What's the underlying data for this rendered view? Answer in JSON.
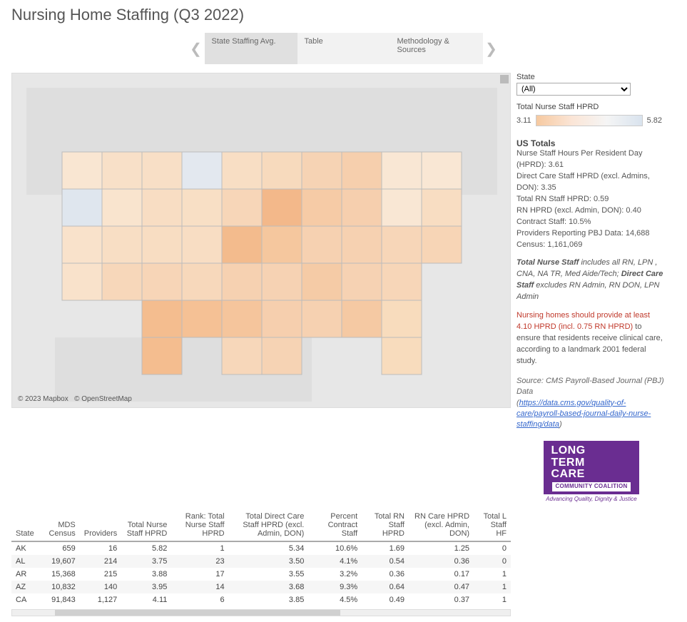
{
  "page": {
    "title": "Nursing Home Staffing (Q3 2022)"
  },
  "tabs": {
    "items": [
      {
        "label": "State Staffing Avg."
      },
      {
        "label": "Table"
      },
      {
        "label": "Methodology & Sources"
      }
    ]
  },
  "filter": {
    "label": "State",
    "selected": "(All)"
  },
  "legend": {
    "title": "Total Nurse Staff HPRD",
    "min": "3.11",
    "max": "5.82",
    "gradient_colors": [
      "#f6c9a0",
      "#fbe5d6",
      "#f5f5f5",
      "#d9e3ee"
    ]
  },
  "map": {
    "background_color": "#e7e7e7",
    "land_color": "#ececec",
    "us_fill_default": "#f8d9bc",
    "stroke_color": "#bcbcbc",
    "attribution_left": "© 2023 Mapbox",
    "attribution_right": "© OpenStreetMap",
    "states": [
      {
        "id": "OR",
        "fill": "#dfe6ee"
      },
      {
        "id": "ND",
        "fill": "#e3e8ef"
      },
      {
        "id": "AK_note",
        "fill": "#e8edf3"
      },
      {
        "id": "IL",
        "fill": "#f3b88a"
      },
      {
        "id": "TX",
        "fill": "#f4bd8f"
      },
      {
        "id": "MO",
        "fill": "#f3bb8d"
      },
      {
        "id": "OK",
        "fill": "#f5c195"
      },
      {
        "id": "LA",
        "fill": "#f5c59c"
      },
      {
        "id": "GA",
        "fill": "#f5c9a3"
      },
      {
        "id": "VA",
        "fill": "#f5cba6"
      },
      {
        "id": "IN",
        "fill": "#f5c79e"
      },
      {
        "id": "NY",
        "fill": "#f6cfad"
      },
      {
        "id": "NM",
        "fill": "#f7d5b7"
      },
      {
        "id": "PA",
        "fill": "#f6cfae"
      },
      {
        "id": "TN",
        "fill": "#f6cfae"
      },
      {
        "id": "NC",
        "fill": "#f6d2b3"
      },
      {
        "id": "SC",
        "fill": "#f6d1b1"
      },
      {
        "id": "AL",
        "fill": "#f6d3b4"
      },
      {
        "id": "MS",
        "fill": "#f7d7ba"
      },
      {
        "id": "AR_s",
        "fill": "#f6d1b1"
      },
      {
        "id": "KY",
        "fill": "#f6d2b3"
      },
      {
        "id": "OH",
        "fill": "#f6cba6"
      },
      {
        "id": "WV",
        "fill": "#f6d1b1"
      },
      {
        "id": "MI",
        "fill": "#f6d3b4"
      },
      {
        "id": "WI",
        "fill": "#f7dabd"
      },
      {
        "id": "MN",
        "fill": "#f8dec4"
      },
      {
        "id": "IA",
        "fill": "#f7d6b8"
      },
      {
        "id": "NE",
        "fill": "#f8ddc3"
      },
      {
        "id": "KS",
        "fill": "#f7d8bb"
      },
      {
        "id": "SD",
        "fill": "#f8dfc5"
      },
      {
        "id": "MT",
        "fill": "#f8dfc6"
      },
      {
        "id": "WY",
        "fill": "#f8ddc3"
      },
      {
        "id": "CO",
        "fill": "#f8ddc2"
      },
      {
        "id": "UT",
        "fill": "#f8dec4"
      },
      {
        "id": "ID",
        "fill": "#f8e0c8"
      },
      {
        "id": "NV",
        "fill": "#f9e4ce"
      },
      {
        "id": "AZ_s",
        "fill": "#f7d7ba"
      },
      {
        "id": "CA_s",
        "fill": "#f9e2cb"
      },
      {
        "id": "WA",
        "fill": "#f9e6d2"
      },
      {
        "id": "FL",
        "fill": "#f8dcbd"
      },
      {
        "id": "ME",
        "fill": "#f9e7d4"
      },
      {
        "id": "NH",
        "fill": "#f9e7d4"
      },
      {
        "id": "VT",
        "fill": "#f9e7d4"
      },
      {
        "id": "MA",
        "fill": "#f8ddc2"
      },
      {
        "id": "CT",
        "fill": "#f7d6b8"
      },
      {
        "id": "NJ",
        "fill": "#f6d1b1"
      },
      {
        "id": "MD",
        "fill": "#f7d5b6"
      },
      {
        "id": "DE",
        "fill": "#f7d6b8"
      }
    ]
  },
  "us_totals": {
    "heading": "US Totals",
    "lines": [
      "Nurse Staff Hours Per Resident Day (HPRD): 3.61",
      "Direct Care Staff HPRD (excl. Admins, DON): 3.35",
      "Total RN Staff HPRD: 0.59",
      "RN HPRD (excl. Admin, DON): 0.40",
      "Contract Staff: 10.5%",
      "Providers Reporting PBJ Data: 14,688",
      "Census: 1,161,069"
    ],
    "note_total_label": "Total Nurse Staff",
    "note_total_rest": " includes all RN, LPN , CNA, NA TR, Med Aide/Tech; ",
    "note_direct_label": "Direct Care Staff",
    "note_direct_rest": " excludes RN Admin, RN DON, LPN Admin",
    "red_text": "Nursing homes should provide at least 4.10 HPRD (incl. 0.75 RN HPRD)",
    "red_rest": " to ensure that residents receive clinical care, according to a landmark 2001 federal study."
  },
  "source": {
    "prefix": "Source: CMS Payroll-Based Journal (PBJ) Data",
    "link_open": "(",
    "url_text": "https://data.cms.gov/quality-of-care/payroll-based-journal-daily-nurse-staffing/data",
    "link_close": ")"
  },
  "logo": {
    "line1": "LONG",
    "line2": "TERM",
    "line3": "CARE",
    "sub": "COMMUNITY COALITION",
    "tag": "Advancing Quality, Dignity & Justice"
  },
  "table": {
    "columns": [
      "State",
      "MDS Census",
      "Providers",
      "Total Nurse Staff HPRD",
      "Rank: Total Nurse Staff HPRD",
      "Total Direct Care Staff HPRD (excl. Admin, DON)",
      "Percent Contract Staff",
      "Total RN Staff HPRD",
      "RN Care HPRD (excl. Admin, DON)",
      "Total L Staff HF"
    ],
    "col_align": [
      "left",
      "right",
      "right",
      "right",
      "right",
      "right",
      "right",
      "right",
      "right",
      "right"
    ],
    "rows": [
      [
        "AK",
        "659",
        "16",
        "5.82",
        "1",
        "5.34",
        "10.6%",
        "1.69",
        "1.25",
        "0"
      ],
      [
        "AL",
        "19,607",
        "214",
        "3.75",
        "23",
        "3.50",
        "4.1%",
        "0.54",
        "0.36",
        "0"
      ],
      [
        "AR",
        "15,368",
        "215",
        "3.88",
        "17",
        "3.55",
        "3.2%",
        "0.36",
        "0.17",
        "1"
      ],
      [
        "AZ",
        "10,832",
        "140",
        "3.95",
        "14",
        "3.68",
        "9.3%",
        "0.64",
        "0.47",
        "1"
      ],
      [
        "CA",
        "91,843",
        "1,127",
        "4.11",
        "6",
        "3.85",
        "4.5%",
        "0.49",
        "0.37",
        "1"
      ]
    ]
  }
}
